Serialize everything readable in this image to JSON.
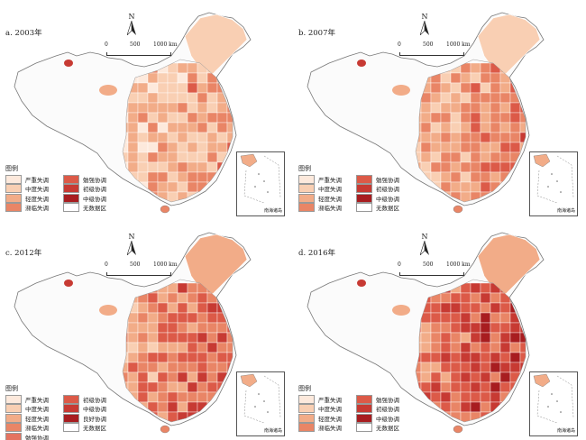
{
  "legend_title": "图例",
  "scale": {
    "labels": [
      "0",
      "500",
      "1000 km"
    ]
  },
  "north_label": "N",
  "inset_label": "南海诸岛",
  "colors": {
    "c1": "#fde9dc",
    "c2": "#f9cfb3",
    "c3": "#f2ac88",
    "c4": "#e98566",
    "c5": "#dc5a48",
    "c6": "#c73a33",
    "c7": "#a81d20",
    "none": "#ffffff"
  },
  "panels": [
    {
      "title": "a. 2003年",
      "legend": [
        {
          "label": "严重失调",
          "color": "#fde9dc"
        },
        {
          "label": "勉强协调",
          "color": "#dc5a48"
        },
        {
          "label": "中度失调",
          "color": "#f9cfb3"
        },
        {
          "label": "初级协调",
          "color": "#c73a33"
        },
        {
          "label": "轻度失调",
          "color": "#f2ac88"
        },
        {
          "label": "中级协调",
          "color": "#a81d20"
        },
        {
          "label": "濒临失调",
          "color": "#e98566"
        },
        {
          "label": "无数据区",
          "color": "#ffffff"
        }
      ]
    },
    {
      "title": "b. 2007年",
      "legend": [
        {
          "label": "严重失调",
          "color": "#fde9dc"
        },
        {
          "label": "勉强协调",
          "color": "#dc5a48"
        },
        {
          "label": "中度失调",
          "color": "#f9cfb3"
        },
        {
          "label": "初级协调",
          "color": "#c73a33"
        },
        {
          "label": "轻度失调",
          "color": "#f2ac88"
        },
        {
          "label": "中级协调",
          "color": "#a81d20"
        },
        {
          "label": "濒临失调",
          "color": "#e98566"
        },
        {
          "label": "无数据区",
          "color": "#ffffff"
        }
      ]
    },
    {
      "title": "c. 2012年",
      "legend": [
        {
          "label": "严重失调",
          "color": "#fde9dc"
        },
        {
          "label": "初级协调",
          "color": "#dc5a48"
        },
        {
          "label": "中度失调",
          "color": "#f9cfb3"
        },
        {
          "label": "中级协调",
          "color": "#c73a33"
        },
        {
          "label": "轻度失调",
          "color": "#f2ac88"
        },
        {
          "label": "良好协调",
          "color": "#a81d20"
        },
        {
          "label": "濒临失调",
          "color": "#e98566"
        },
        {
          "label": "无数据区",
          "color": "#ffffff"
        },
        {
          "label": "勉强协调",
          "color": "#e47360"
        }
      ]
    },
    {
      "title": "d. 2016年",
      "legend": [
        {
          "label": "严重失调",
          "color": "#fde9dc"
        },
        {
          "label": "勉强协调",
          "color": "#dc5a48"
        },
        {
          "label": "中度失调",
          "color": "#f9cfb3"
        },
        {
          "label": "初级协调",
          "color": "#c73a33"
        },
        {
          "label": "轻度失调",
          "color": "#f2ac88"
        },
        {
          "label": "中级协调",
          "color": "#a81d20"
        },
        {
          "label": "濒临失调",
          "color": "#e98566"
        },
        {
          "label": "无数据区",
          "color": "#ffffff"
        }
      ]
    }
  ]
}
